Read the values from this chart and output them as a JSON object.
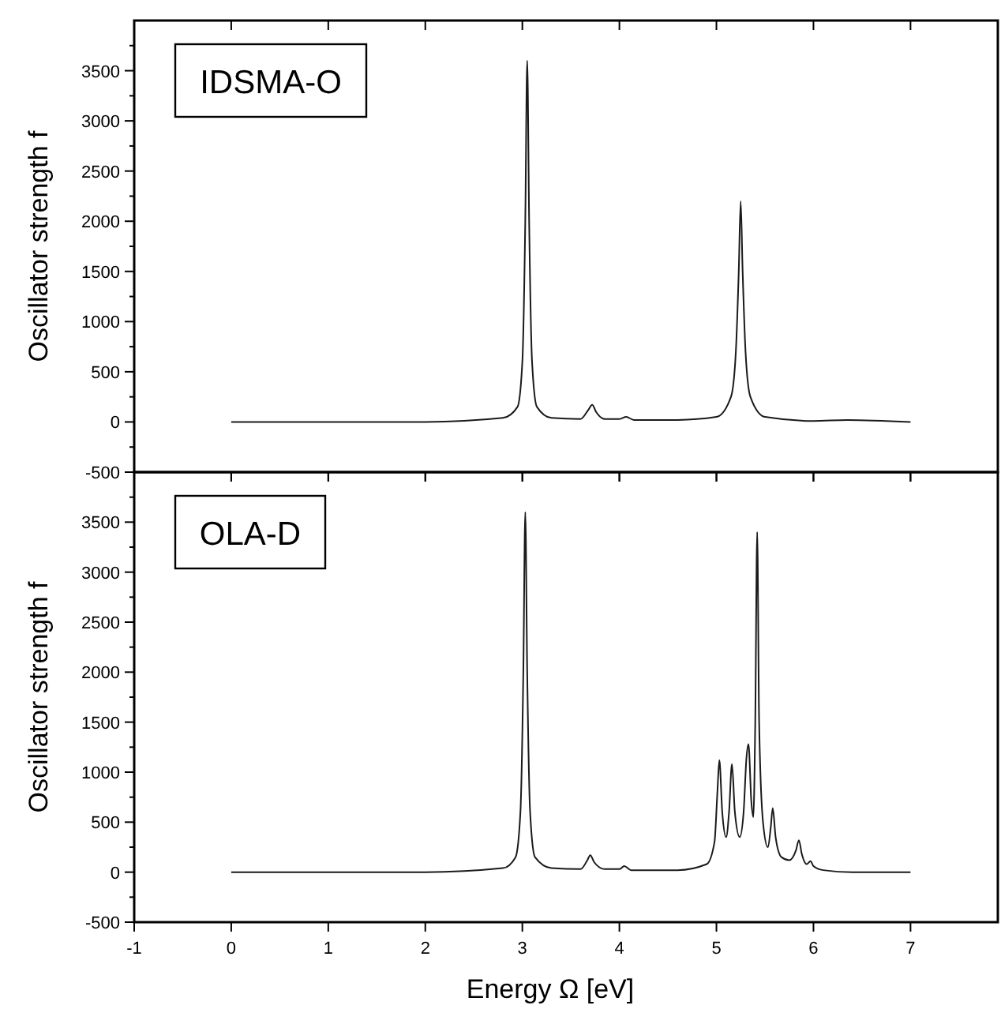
{
  "chart_data": [
    {
      "type": "line",
      "annotations": [
        "IDSMA-O"
      ],
      "ylabel": "Oscillator strength f",
      "xlim": [
        -1,
        7.9
      ],
      "xticks": [
        -1,
        0,
        1,
        2,
        3,
        4,
        5,
        6,
        7
      ],
      "ylim": [
        -500,
        4000
      ],
      "yticks": [
        -500,
        {
          "value": -250,
          "label": null
        },
        0,
        {
          "value": 250,
          "label": null
        },
        500,
        {
          "value": 750,
          "label": null
        },
        1000,
        {
          "value": 1250,
          "label": null
        },
        1500,
        {
          "value": 1750,
          "label": null
        },
        2000,
        {
          "value": 2250,
          "label": null
        },
        2500,
        {
          "value": 2750,
          "label": null
        },
        3000,
        {
          "value": 3250,
          "label": null
        },
        3500,
        {
          "value": 3750,
          "label": null
        }
      ],
      "tick_labels": "y",
      "grid": false,
      "marker": "none",
      "line_style": "solid",
      "series": [
        {
          "color": "#1a1a1a",
          "x": [
            0,
            1,
            2,
            2.8,
            2.95,
            3.0,
            3.03,
            3.05,
            3.07,
            3.1,
            3.15,
            3.3,
            3.6,
            3.68,
            3.72,
            3.76,
            3.85,
            4.0,
            4.07,
            4.15,
            4.6,
            5.0,
            5.15,
            5.2,
            5.23,
            5.25,
            5.27,
            5.3,
            5.35,
            5.5,
            6.0,
            6.35,
            7.0
          ],
          "values": [
            0,
            0,
            0,
            40,
            150,
            600,
            2000,
            3600,
            2000,
            600,
            150,
            40,
            30,
            120,
            170,
            100,
            30,
            30,
            50,
            20,
            20,
            50,
            250,
            700,
            1500,
            2200,
            1500,
            700,
            250,
            50,
            10,
            20,
            0
          ]
        }
      ]
    },
    {
      "type": "line",
      "annotations": [
        "OLA-D"
      ],
      "xlabel": "Energy Ω  [eV]",
      "ylabel": "Oscillator strength f",
      "xlim": [
        -1,
        7.9
      ],
      "xticks": [
        -1,
        0,
        1,
        2,
        3,
        4,
        5,
        6,
        7
      ],
      "ylim": [
        -500,
        4000
      ],
      "yticks": [
        -500,
        {
          "value": -250,
          "label": null
        },
        0,
        {
          "value": 250,
          "label": null
        },
        500,
        {
          "value": 750,
          "label": null
        },
        1000,
        {
          "value": 1250,
          "label": null
        },
        1500,
        {
          "value": 1750,
          "label": null
        },
        2000,
        {
          "value": 2250,
          "label": null
        },
        2500,
        {
          "value": 2750,
          "label": null
        },
        3000,
        {
          "value": 3250,
          "label": null
        },
        3500,
        {
          "value": 3750,
          "label": null
        }
      ],
      "grid": false,
      "marker": "none",
      "line_style": "solid",
      "series": [
        {
          "color": "#1a1a1a",
          "x": [
            0,
            1,
            2,
            2.8,
            2.93,
            2.98,
            3.01,
            3.03,
            3.05,
            3.08,
            3.13,
            3.3,
            3.6,
            3.67,
            3.7,
            3.74,
            3.85,
            4.0,
            4.05,
            4.12,
            4.6,
            4.9,
            4.98,
            5.01,
            5.03,
            5.06,
            5.1,
            5.13,
            5.16,
            5.19,
            5.24,
            5.28,
            5.31,
            5.33,
            5.36,
            5.38,
            5.4,
            5.42,
            5.44,
            5.48,
            5.53,
            5.56,
            5.58,
            5.61,
            5.67,
            5.75,
            5.82,
            5.85,
            5.88,
            5.93,
            5.97,
            6.0,
            6.1,
            6.4,
            7.0
          ],
          "values": [
            0,
            0,
            0,
            40,
            150,
            600,
            2000,
            3600,
            2000,
            600,
            150,
            40,
            30,
            120,
            170,
            100,
            30,
            30,
            60,
            20,
            20,
            80,
            300,
            800,
            1120,
            600,
            350,
            600,
            1080,
            600,
            350,
            600,
            1150,
            1280,
            700,
            550,
            1500,
            3400,
            1500,
            500,
            250,
            450,
            640,
            350,
            150,
            120,
            220,
            320,
            180,
            80,
            110,
            60,
            20,
            0,
            0
          ]
        }
      ]
    }
  ]
}
